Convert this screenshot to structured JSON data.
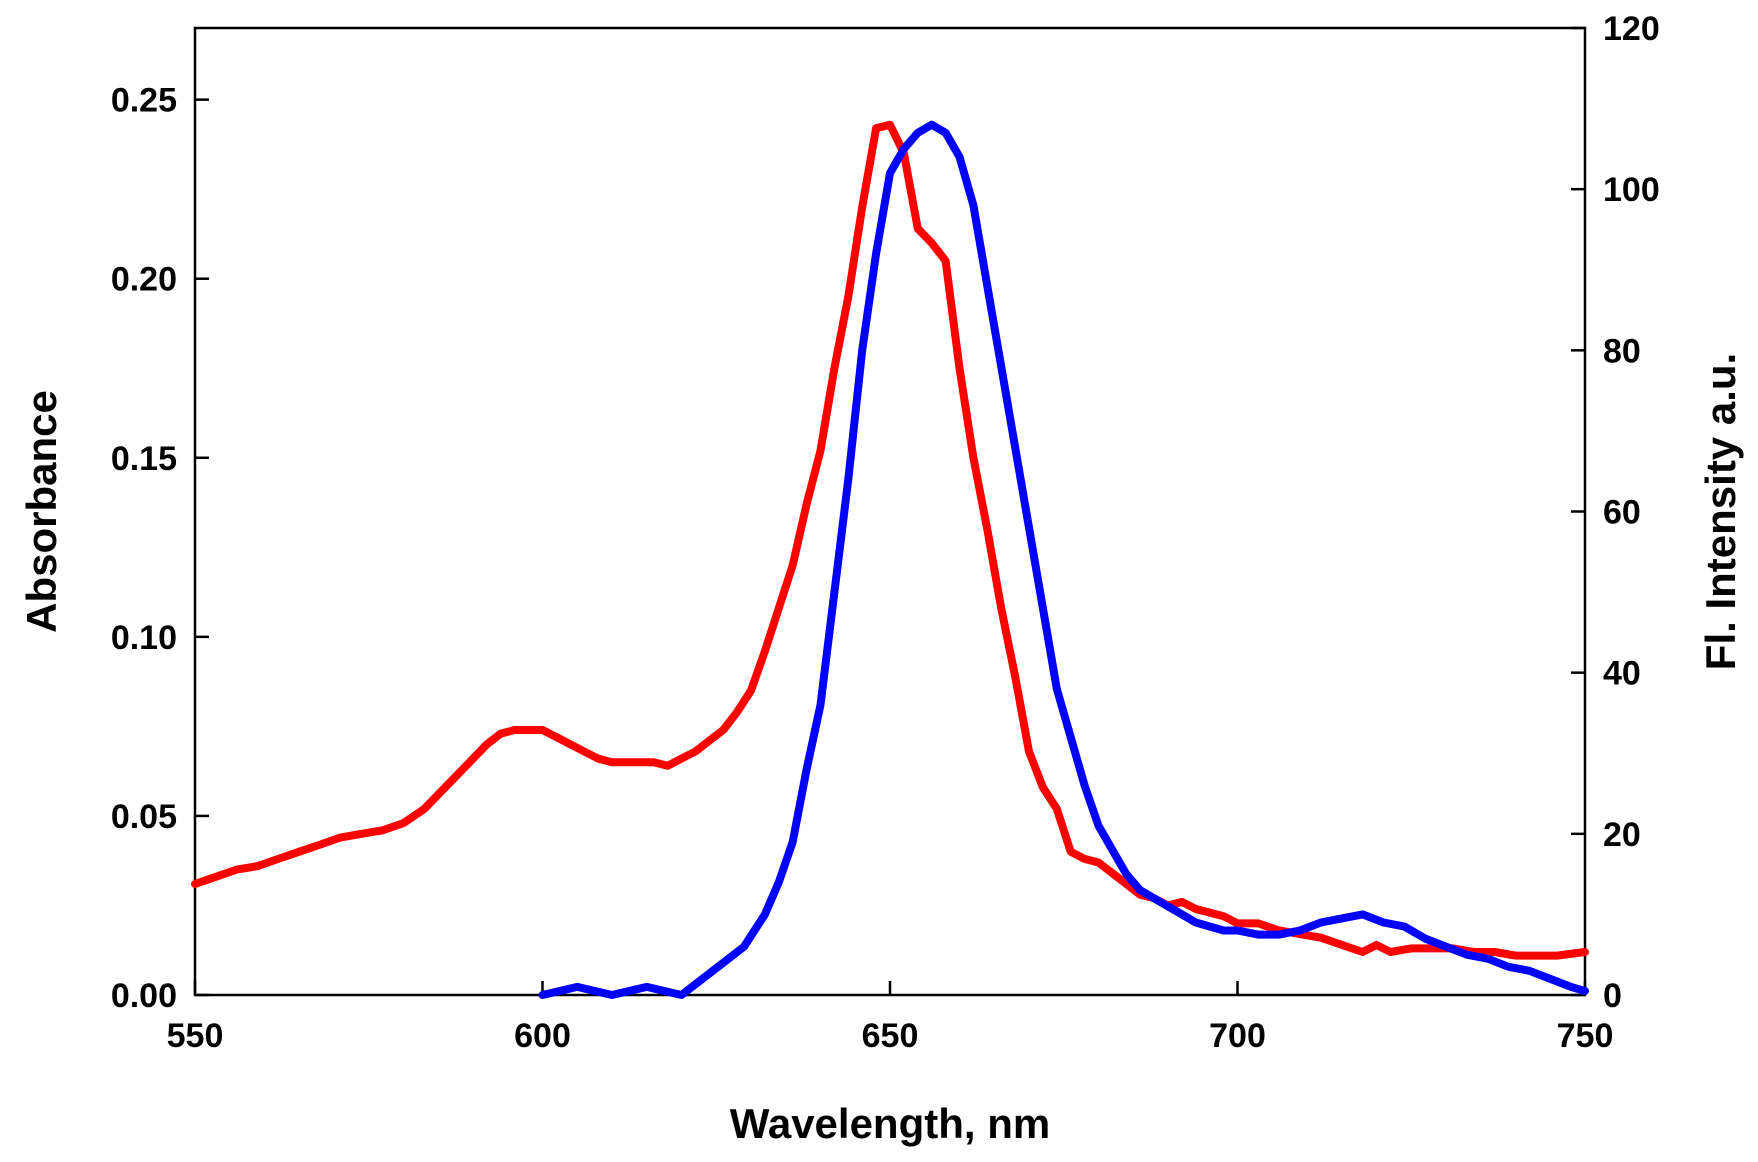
{
  "chart_data": {
    "type": "line",
    "title": "",
    "xlabel": "Wavelength, nm",
    "ylabel": "Absorbance",
    "y2label": "Fl. Intensity a.u.",
    "xlim": [
      550,
      750
    ],
    "ylim": [
      0,
      0.27
    ],
    "y2lim": [
      0,
      120
    ],
    "grid": false,
    "legend": "none",
    "xticks": [
      550,
      600,
      650,
      700,
      750
    ],
    "xtick_labels": [
      "550",
      "600",
      "650",
      "700",
      "750"
    ],
    "yticks": [
      0,
      0.05,
      0.1,
      0.15,
      0.2,
      0.25
    ],
    "ytick_labels": [
      "0.00",
      "0.05",
      "0.10",
      "0.15",
      "0.20",
      "0.25"
    ],
    "y2ticks": [
      0,
      20,
      40,
      60,
      80,
      100,
      120
    ],
    "y2tick_labels": [
      "0",
      "20",
      "40",
      "60",
      "80",
      "100",
      "120"
    ],
    "series": [
      {
        "axis": "left",
        "color": "#ff0000",
        "x": [
          550,
          553,
          556,
          559,
          562,
          565,
          568,
          571,
          574,
          577,
          580,
          583,
          586,
          589,
          592,
          594,
          596,
          598,
          600,
          602,
          604,
          606,
          608,
          610,
          612,
          614,
          616,
          618,
          620,
          622,
          624,
          626,
          628,
          630,
          632,
          634,
          636,
          638,
          640,
          642,
          644,
          646,
          648,
          650,
          652,
          654,
          656,
          658,
          660,
          662,
          664,
          666,
          668,
          670,
          672,
          674,
          676,
          678,
          680,
          682,
          684,
          686,
          688,
          690,
          692,
          694,
          696,
          698,
          700,
          703,
          706,
          709,
          712,
          715,
          718,
          720,
          722,
          725,
          728,
          731,
          734,
          737,
          740,
          743,
          746,
          750
        ],
        "y": [
          0.031,
          0.033,
          0.035,
          0.036,
          0.038,
          0.04,
          0.042,
          0.044,
          0.045,
          0.046,
          0.048,
          0.052,
          0.058,
          0.064,
          0.07,
          0.073,
          0.074,
          0.074,
          0.074,
          0.072,
          0.07,
          0.068,
          0.066,
          0.065,
          0.065,
          0.065,
          0.065,
          0.064,
          0.066,
          0.068,
          0.071,
          0.074,
          0.079,
          0.085,
          0.096,
          0.108,
          0.12,
          0.137,
          0.152,
          0.175,
          0.195,
          0.22,
          0.242,
          0.243,
          0.235,
          0.214,
          0.21,
          0.205,
          0.175,
          0.15,
          0.13,
          0.108,
          0.089,
          0.068,
          0.058,
          0.052,
          0.04,
          0.038,
          0.037,
          0.034,
          0.031,
          0.028,
          0.027,
          0.025,
          0.026,
          0.024,
          0.023,
          0.022,
          0.02,
          0.02,
          0.018,
          0.017,
          0.016,
          0.014,
          0.012,
          0.014,
          0.012,
          0.013,
          0.013,
          0.013,
          0.012,
          0.012,
          0.011,
          0.011,
          0.011,
          0.012
        ]
      },
      {
        "axis": "right",
        "color": "#0000ff",
        "x": [
          600,
          605,
          610,
          615,
          620,
          623,
          626,
          629,
          632,
          634,
          636,
          638,
          640,
          642,
          644,
          646,
          648,
          650,
          652,
          654,
          656,
          658,
          660,
          662,
          664,
          666,
          668,
          670,
          672,
          674,
          676,
          678,
          680,
          682,
          684,
          686,
          688,
          690,
          692,
          694,
          696,
          698,
          700,
          703,
          706,
          709,
          712,
          715,
          718,
          721,
          724,
          727,
          730,
          733,
          736,
          739,
          742,
          745,
          748,
          750
        ],
        "y": [
          0,
          1,
          0,
          1,
          0,
          2,
          4,
          6,
          10,
          14,
          19,
          28,
          36,
          50,
          64,
          80,
          92,
          102,
          105,
          107,
          108,
          107,
          104,
          98,
          88,
          78,
          68,
          58,
          48,
          38,
          32,
          26,
          21,
          18,
          15,
          13,
          12,
          11,
          10,
          9,
          8.5,
          8,
          8,
          7.5,
          7.5,
          8,
          9,
          9.5,
          10,
          9,
          8.5,
          7,
          6,
          5,
          4.5,
          3.5,
          3,
          2,
          1,
          0.5
        ]
      }
    ]
  }
}
